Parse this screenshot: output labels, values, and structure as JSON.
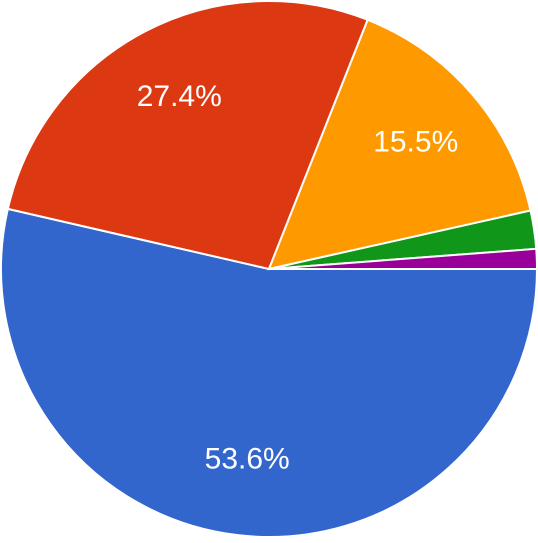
{
  "chart_data": {
    "type": "pie",
    "values": [
      53.6,
      27.4,
      15.5,
      2.3,
      1.2
    ],
    "value_labels": [
      "53.6%",
      "27.4%",
      "15.5%",
      null,
      null
    ],
    "colors": [
      "#3366cc",
      "#dc3912",
      "#ff9900",
      "#109618",
      "#990099"
    ]
  }
}
